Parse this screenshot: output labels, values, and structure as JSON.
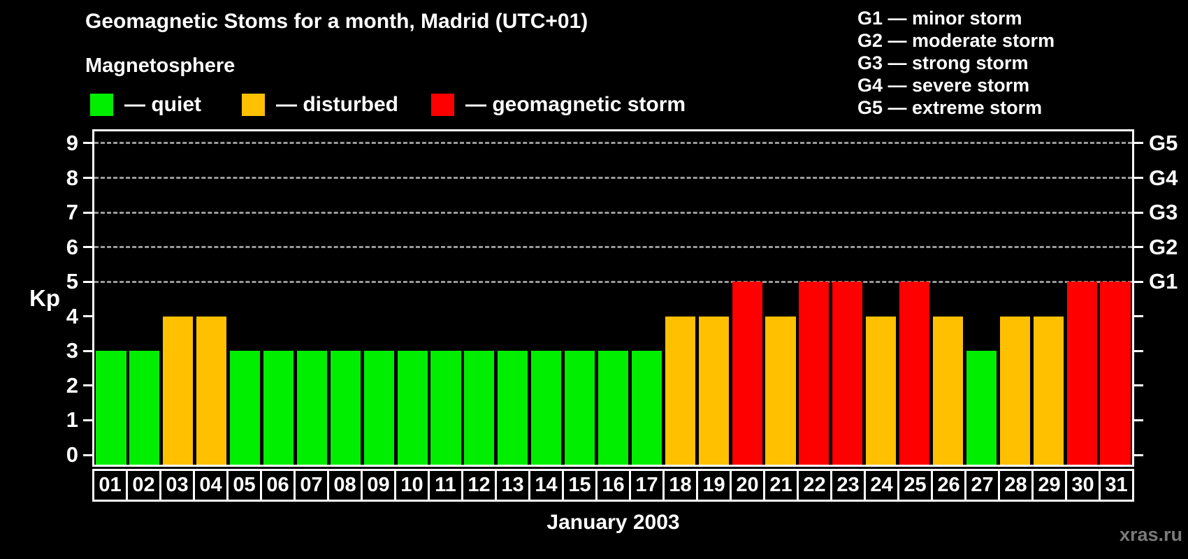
{
  "header": {
    "title": "Geomagnetic Stoms for a month, Madrid (UTC+01)",
    "subtitle": "Magnetosphere"
  },
  "legend": {
    "items": [
      {
        "name": "quiet",
        "label": "— quiet",
        "color": "#00EE00"
      },
      {
        "name": "disturbed",
        "label": "— disturbed",
        "color": "#FFC000"
      },
      {
        "name": "storm",
        "label": "— geomagnetic storm",
        "color": "#FF0000"
      }
    ]
  },
  "g_legend": {
    "lines": [
      "G1 — minor storm",
      "G2 — moderate storm",
      "G3 — strong storm",
      "G4 — severe storm",
      "G5 — extreme storm"
    ]
  },
  "axis": {
    "kp_label": "Kp",
    "yticks": [
      0,
      1,
      2,
      3,
      4,
      5,
      6,
      7,
      8,
      9
    ],
    "gridline_levels": [
      5,
      6,
      7,
      8,
      9
    ],
    "right_labels": [
      {
        "kp": 5,
        "label": "G1"
      },
      {
        "kp": 6,
        "label": "G2"
      },
      {
        "kp": 7,
        "label": "G3"
      },
      {
        "kp": 8,
        "label": "G4"
      },
      {
        "kp": 9,
        "label": "G5"
      }
    ]
  },
  "x_axis": {
    "month_label": "January 2003"
  },
  "watermark": "xras.ru",
  "chart_data": {
    "type": "bar",
    "title": "Geomagnetic Stoms for a month, Madrid (UTC+01)",
    "xlabel": "January 2003",
    "ylabel": "Kp",
    "ylim": [
      0,
      9
    ],
    "grid": "dashed horizontal lines at Kp 5-9 only",
    "legend_position": "top-left (magnetosphere states), top-right (G-scale)",
    "categories": [
      "01",
      "02",
      "03",
      "04",
      "05",
      "06",
      "07",
      "08",
      "09",
      "10",
      "11",
      "12",
      "13",
      "14",
      "15",
      "16",
      "17",
      "18",
      "19",
      "20",
      "21",
      "22",
      "23",
      "24",
      "25",
      "26",
      "27",
      "28",
      "29",
      "30",
      "31"
    ],
    "values": [
      3,
      3,
      4,
      4,
      3,
      3,
      3,
      3,
      3,
      3,
      3,
      3,
      3,
      3,
      3,
      3,
      3,
      4,
      4,
      5,
      4,
      5,
      5,
      4,
      5,
      4,
      3,
      4,
      4,
      5,
      5
    ],
    "statuses": [
      "quiet",
      "quiet",
      "disturbed",
      "disturbed",
      "quiet",
      "quiet",
      "quiet",
      "quiet",
      "quiet",
      "quiet",
      "quiet",
      "quiet",
      "quiet",
      "quiet",
      "quiet",
      "quiet",
      "quiet",
      "disturbed",
      "disturbed",
      "storm",
      "disturbed",
      "storm",
      "storm",
      "disturbed",
      "storm",
      "disturbed",
      "quiet",
      "disturbed",
      "disturbed",
      "storm",
      "storm"
    ],
    "colors": {
      "quiet": "#00EE00",
      "disturbed": "#FFC000",
      "storm": "#FF0000"
    }
  }
}
